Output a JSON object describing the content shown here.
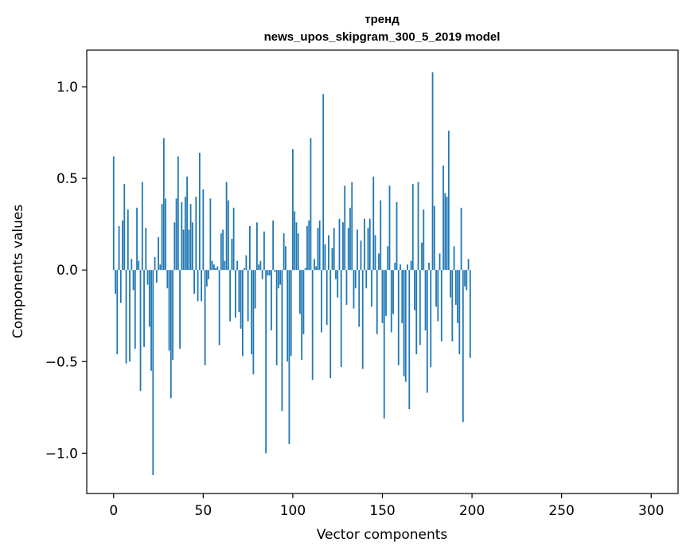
{
  "chart_data": {
    "type": "bar",
    "title": [
      "тренд",
      "news_upos_skipgram_300_5_2019 model"
    ],
    "xlabel": "Vector components",
    "ylabel": "Components values",
    "xlim": [
      -15,
      315
    ],
    "ylim": [
      -1.22,
      1.2
    ],
    "xticks": [
      0,
      50,
      100,
      150,
      200,
      250,
      300
    ],
    "xtick_labels": [
      "0",
      "50",
      "100",
      "150",
      "200",
      "250",
      "300"
    ],
    "yticks": [
      -1.0,
      -0.5,
      0.0,
      0.5,
      1.0
    ],
    "ytick_labels": [
      "−1.0",
      "−0.5",
      "0.0",
      "0.5",
      "1.0"
    ],
    "bar_color": "#1f77b4",
    "grid": false,
    "values": [
      0.62,
      -0.13,
      -0.46,
      0.24,
      -0.18,
      0.27,
      0.47,
      -0.51,
      0.33,
      -0.5,
      0.06,
      -0.11,
      -0.43,
      0.34,
      0.05,
      -0.66,
      0.48,
      -0.42,
      0.23,
      -0.08,
      -0.31,
      -0.55,
      -1.12,
      0.07,
      -0.07,
      0.18,
      0.03,
      0.36,
      0.72,
      0.39,
      -0.1,
      -0.44,
      -0.7,
      -0.49,
      0.26,
      0.39,
      0.62,
      -0.43,
      0.37,
      0.22,
      0.4,
      0.51,
      0.22,
      0.36,
      0.26,
      -0.13,
      0.4,
      -0.17,
      0.64,
      -0.17,
      0.44,
      -0.52,
      -0.09,
      -0.05,
      0.39,
      0.05,
      0.03,
      0.01,
      0.02,
      -0.41,
      0.2,
      0.22,
      0.05,
      0.48,
      0.38,
      -0.28,
      0.17,
      0.34,
      -0.26,
      0.05,
      -0.23,
      -0.32,
      -0.47,
      0.01,
      0.08,
      -0.28,
      0.24,
      -0.46,
      -0.57,
      -0.21,
      0.26,
      0.03,
      0.05,
      -0.05,
      0.21,
      -1.0,
      -0.03,
      -0.03,
      -0.33,
      0.27,
      -0.01,
      -0.52,
      -0.1,
      -0.08,
      -0.77,
      0.2,
      0.13,
      -0.5,
      -0.95,
      -0.47,
      0.66,
      0.32,
      0.26,
      0.2,
      -0.24,
      -0.49,
      -0.35,
      0.01,
      0.24,
      0.27,
      0.72,
      -0.6,
      0.06,
      0.02,
      0.23,
      0.27,
      -0.34,
      0.96,
      0.14,
      -0.3,
      0.19,
      -0.59,
      0.12,
      0.23,
      -0.05,
      -0.15,
      0.28,
      -0.53,
      0.26,
      0.46,
      -0.19,
      0.23,
      0.34,
      0.48,
      -0.21,
      -0.1,
      0.22,
      -0.31,
      0.16,
      -0.54,
      0.28,
      -0.1,
      0.23,
      0.28,
      -0.2,
      0.51,
      0.19,
      -0.35,
      0.09,
      0.38,
      -0.29,
      -0.81,
      -0.25,
      0.13,
      0.46,
      -0.34,
      -0.24,
      0.04,
      0.37,
      -0.52,
      0.03,
      -0.29,
      -0.58,
      -0.61,
      0.03,
      -0.76,
      0.05,
      0.47,
      -0.22,
      -0.46,
      0.48,
      -0.41,
      0.15,
      0.33,
      -0.33,
      -0.67,
      0.04,
      -0.53,
      1.08,
      0.35,
      -0.2,
      -0.28,
      0.09,
      -0.39,
      0.57,
      0.42,
      0.4,
      0.76,
      -0.15,
      -0.39,
      0.13,
      -0.19,
      -0.29,
      -0.46,
      0.34,
      -0.83,
      -0.09,
      -0.11,
      0.06,
      -0.48
    ]
  }
}
